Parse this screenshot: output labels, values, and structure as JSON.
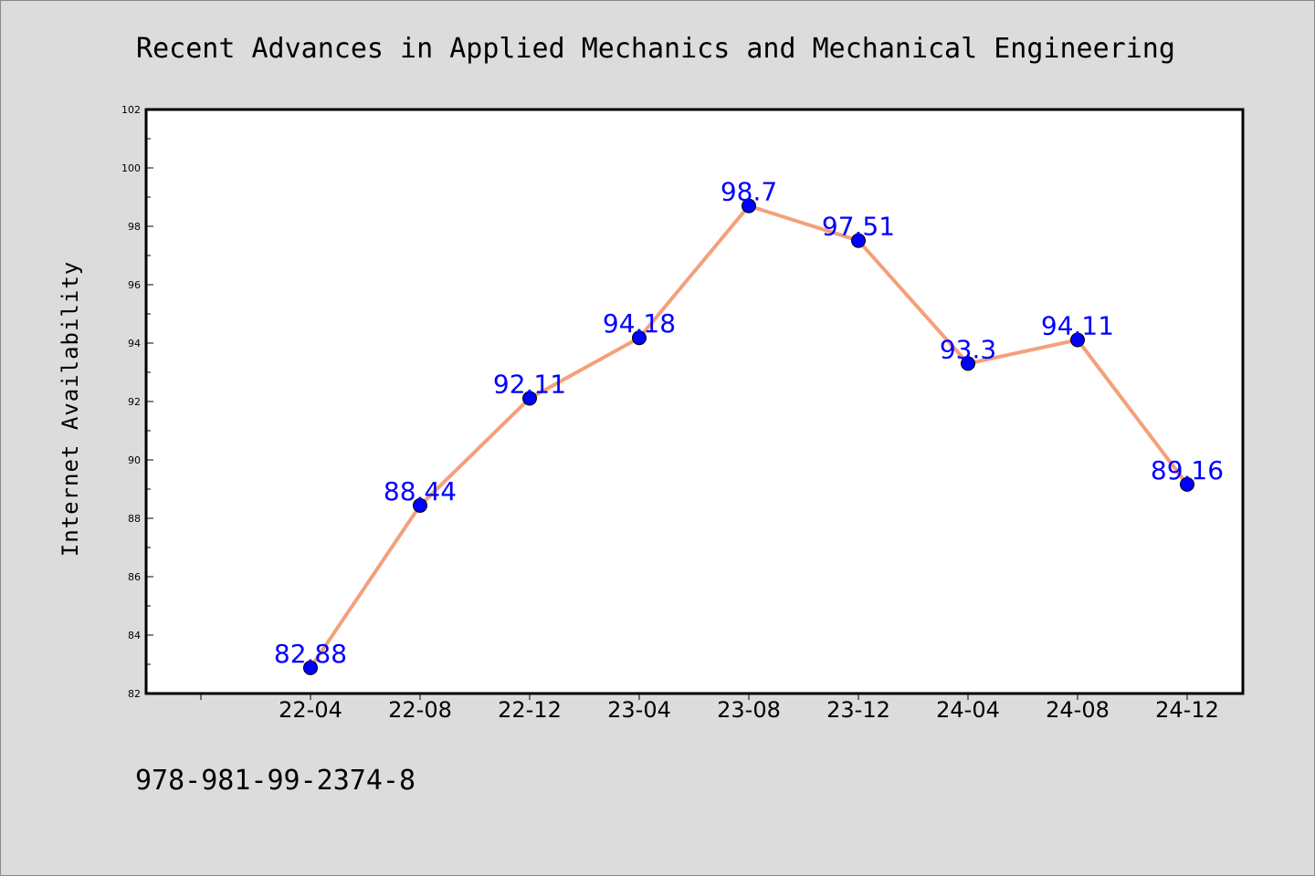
{
  "chart_data": {
    "type": "line",
    "title": "Recent Advances in Applied Mechanics and Mechanical Engineering",
    "ylabel": "Internet Availability",
    "xlabel": "",
    "categories": [
      "22-04",
      "22-08",
      "22-12",
      "23-04",
      "23-08",
      "23-12",
      "24-04",
      "24-08",
      "24-12"
    ],
    "series": [
      {
        "values": [
          82.88,
          88.44,
          92.11,
          94.18,
          98.7,
          97.51,
          93.3,
          94.11,
          89.16
        ],
        "data_labels": [
          "82.88",
          "88.44",
          "92.11",
          "94.18",
          "98.7",
          "97.51",
          "93.3",
          "94.11",
          "89.16"
        ]
      }
    ],
    "ylim": [
      82,
      102
    ],
    "yticks": [
      82,
      84,
      86,
      88,
      90,
      92,
      94,
      96,
      98,
      100,
      102
    ],
    "grid": false,
    "colors": {
      "line": "#f4a07a",
      "marker": "#0000ff",
      "data_label": "#0000ff",
      "background": "#dcdcdc",
      "plot_background": "#ffffff"
    }
  },
  "footer_text": "978-981-99-2374-8"
}
